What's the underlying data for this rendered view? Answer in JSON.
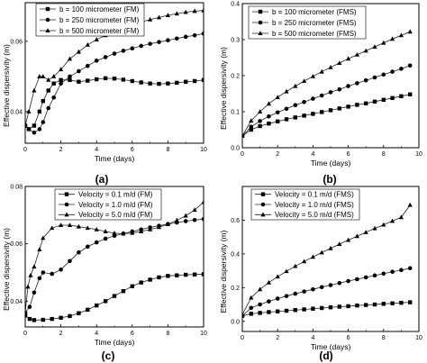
{
  "chart_data": [
    {
      "type": "line",
      "panel_label": "(a)",
      "xlabel": "Time (days)",
      "ylabel": "Effective dispersivity (m)",
      "xlim": [
        0,
        10
      ],
      "ylim": [
        0.031,
        0.071
      ],
      "xticks": [
        0,
        2,
        4,
        6,
        8,
        10
      ],
      "yticks": [
        0.04,
        0.06
      ],
      "legend_position": "top-left",
      "series": [
        {
          "name": "b = 100 micrometer (FM)",
          "marker": "square",
          "x": [
            0,
            0.2,
            0.5,
            0.8,
            1,
            1.3,
            1.6,
            2,
            2.5,
            3,
            3.5,
            4,
            4.5,
            5,
            5.5,
            6,
            6.5,
            7,
            7.5,
            8,
            8.5,
            9,
            9.5,
            10
          ],
          "y": [
            0.036,
            0.035,
            0.036,
            0.04,
            0.043,
            0.046,
            0.048,
            0.049,
            0.049,
            0.0485,
            0.0488,
            0.0492,
            0.0495,
            0.0494,
            0.0491,
            0.0487,
            0.0483,
            0.048,
            0.0479,
            0.048,
            0.0482,
            0.0485,
            0.0487,
            0.049
          ]
        },
        {
          "name": "b = 250 micrometer (FM)",
          "marker": "circle",
          "x": [
            0,
            0.2,
            0.5,
            0.8,
            1,
            1.3,
            1.6,
            2,
            2.5,
            3,
            3.5,
            4,
            4.5,
            5,
            5.5,
            6,
            6.5,
            7,
            7.5,
            8,
            8.5,
            9,
            9.5,
            10
          ],
          "y": [
            0.036,
            0.035,
            0.034,
            0.035,
            0.037,
            0.041,
            0.044,
            0.048,
            0.05,
            0.0515,
            0.053,
            0.0545,
            0.0555,
            0.0565,
            0.0573,
            0.058,
            0.0587,
            0.0593,
            0.0598,
            0.0603,
            0.0608,
            0.0613,
            0.0617,
            0.0622
          ]
        },
        {
          "name": "b = 500 micrometer (FM)",
          "marker": "triangle",
          "x": [
            0,
            0.2,
            0.5,
            0.8,
            1,
            1.3,
            1.6,
            2,
            2.5,
            3,
            3.5,
            4,
            4.5,
            5,
            5.5,
            6,
            6.5,
            7,
            7.5,
            8,
            8.5,
            9,
            9.5,
            10
          ],
          "y": [
            0.036,
            0.04,
            0.046,
            0.05,
            0.05,
            0.049,
            0.05,
            0.052,
            0.055,
            0.057,
            0.059,
            0.0605,
            0.0617,
            0.0628,
            0.0638,
            0.0647,
            0.0655,
            0.0662,
            0.0668,
            0.0674,
            0.0679,
            0.0683,
            0.0686,
            0.0688
          ]
        }
      ]
    },
    {
      "type": "line",
      "panel_label": "(b)",
      "xlabel": "Time (days)",
      "ylabel": "Effective dispersivity (m)",
      "xlim": [
        0,
        10
      ],
      "ylim": [
        0,
        0.4
      ],
      "xticks": [
        0,
        2,
        4,
        6,
        8,
        10
      ],
      "yticks": [
        0.0,
        0.1,
        0.2,
        0.3,
        0.4
      ],
      "ytick_labels": [
        "0.0",
        "0.1",
        "0.2",
        "0.3",
        "0.4"
      ],
      "legend_position": "top-left",
      "series": [
        {
          "name": "b = 100 micrometer (FMS)",
          "marker": "square",
          "x": [
            0,
            0.5,
            1,
            1.5,
            2,
            2.5,
            3,
            3.5,
            4,
            4.5,
            5,
            5.5,
            6,
            6.5,
            7,
            7.5,
            8,
            8.5,
            9,
            9.5
          ],
          "y": [
            0.033,
            0.05,
            0.06,
            0.067,
            0.073,
            0.079,
            0.084,
            0.089,
            0.094,
            0.099,
            0.104,
            0.109,
            0.114,
            0.119,
            0.123,
            0.128,
            0.133,
            0.138,
            0.143,
            0.148
          ]
        },
        {
          "name": "b = 250 micrometer (FMS)",
          "marker": "circle",
          "x": [
            0,
            0.5,
            1,
            1.5,
            2,
            2.5,
            3,
            3.5,
            4,
            4.5,
            5,
            5.5,
            6,
            6.5,
            7,
            7.5,
            8,
            8.5,
            9,
            9.5
          ],
          "y": [
            0.033,
            0.058,
            0.074,
            0.087,
            0.098,
            0.108,
            0.118,
            0.127,
            0.136,
            0.145,
            0.154,
            0.162,
            0.171,
            0.179,
            0.187,
            0.195,
            0.203,
            0.211,
            0.219,
            0.228
          ]
        },
        {
          "name": "b = 500 micrometer (FMS)",
          "marker": "triangle",
          "x": [
            0,
            0.5,
            1,
            1.5,
            2,
            2.5,
            3,
            3.5,
            4,
            4.5,
            5,
            5.5,
            6,
            6.5,
            7,
            7.5,
            8,
            8.5,
            9,
            9.5
          ],
          "y": [
            0.033,
            0.075,
            0.1,
            0.122,
            0.14,
            0.156,
            0.171,
            0.185,
            0.198,
            0.211,
            0.223,
            0.235,
            0.247,
            0.258,
            0.269,
            0.28,
            0.291,
            0.302,
            0.312,
            0.322
          ]
        }
      ]
    },
    {
      "type": "line",
      "panel_label": "(c)",
      "xlabel": "Time (days)",
      "ylabel": "Effective dispersivity (m)",
      "xlim": [
        0,
        10
      ],
      "ylim": [
        0.031,
        0.08
      ],
      "xticks": [
        0,
        2,
        4,
        6,
        8,
        10
      ],
      "yticks": [
        0.04,
        0.06,
        0.08
      ],
      "legend_position": "top-center",
      "series": [
        {
          "name": "Velocity = 0.1 m/d (FM)",
          "marker": "square",
          "x": [
            0,
            0.25,
            0.5,
            1,
            1.5,
            2,
            2.5,
            3,
            3.5,
            4,
            4.5,
            5,
            5.5,
            6,
            6.5,
            7,
            7.5,
            8,
            8.5,
            9,
            9.5,
            10
          ],
          "y": [
            0.035,
            0.0338,
            0.0334,
            0.0335,
            0.0338,
            0.0342,
            0.0348,
            0.0358,
            0.037,
            0.0385,
            0.04,
            0.0418,
            0.0435,
            0.0452,
            0.0465,
            0.0475,
            0.0483,
            0.0488,
            0.049,
            0.0492,
            0.0493,
            0.0494
          ]
        },
        {
          "name": "Velocity = 1.0 m/d (FM)",
          "marker": "circle",
          "x": [
            0,
            0.25,
            0.5,
            0.8,
            1,
            1.5,
            2,
            2.5,
            3,
            3.5,
            4,
            4.5,
            5,
            5.5,
            6,
            6.5,
            7,
            7.5,
            8,
            8.5,
            9,
            9.5,
            10
          ],
          "y": [
            0.036,
            0.038,
            0.043,
            0.048,
            0.05,
            0.0495,
            0.051,
            0.054,
            0.057,
            0.059,
            0.0605,
            0.0618,
            0.0628,
            0.0636,
            0.0643,
            0.065,
            0.0657,
            0.0663,
            0.0669,
            0.0674,
            0.0679,
            0.0683,
            0.0686
          ]
        },
        {
          "name": "Velocity = 5.0 m/d (FM)",
          "marker": "triangle",
          "x": [
            0,
            0.15,
            0.3,
            0.5,
            0.8,
            1,
            1.5,
            2,
            2.5,
            3,
            3.5,
            4,
            4.5,
            5,
            5.5,
            6,
            6.5,
            7,
            7.5,
            8,
            8.5,
            9,
            9.5,
            10
          ],
          "y": [
            0.036,
            0.045,
            0.049,
            0.052,
            0.058,
            0.062,
            0.0655,
            0.0665,
            0.0665,
            0.066,
            0.0655,
            0.065,
            0.0643,
            0.0637,
            0.0635,
            0.0638,
            0.0643,
            0.065,
            0.0658,
            0.0668,
            0.0682,
            0.0698,
            0.0718,
            0.0745
          ]
        }
      ]
    },
    {
      "type": "line",
      "panel_label": "(d)",
      "xlabel": "Time (days)",
      "ylabel": "Effective dispersivity (m)",
      "xlim": [
        0,
        10
      ],
      "ylim": [
        -0.06,
        0.8
      ],
      "xticks": [
        0,
        2,
        4,
        6,
        8,
        10
      ],
      "yticks": [
        0.0,
        0.2,
        0.4,
        0.6
      ],
      "ytick_labels": [
        "0.0",
        "0.2",
        "0.4",
        "0.6"
      ],
      "legend_position": "top-left",
      "series": [
        {
          "name": "Velocity = 0.1 m/d (FMS)",
          "marker": "square",
          "x": [
            0,
            0.5,
            1,
            1.5,
            2,
            2.5,
            3,
            3.5,
            4,
            4.5,
            5,
            5.5,
            6,
            6.5,
            7,
            7.5,
            8,
            8.5,
            9,
            9.5
          ],
          "y": [
            0.033,
            0.045,
            0.05,
            0.055,
            0.059,
            0.063,
            0.067,
            0.071,
            0.075,
            0.079,
            0.083,
            0.087,
            0.09,
            0.094,
            0.097,
            0.1,
            0.104,
            0.107,
            0.11,
            0.113
          ]
        },
        {
          "name": "Velocity = 1.0 m/d (FMS)",
          "marker": "circle",
          "x": [
            0,
            0.5,
            1,
            1.5,
            2,
            2.5,
            3,
            3.5,
            4,
            4.5,
            5,
            5.5,
            6,
            6.5,
            7,
            7.5,
            8,
            8.5,
            9,
            9.5
          ],
          "y": [
            0.033,
            0.08,
            0.1,
            0.118,
            0.135,
            0.15,
            0.164,
            0.177,
            0.19,
            0.203,
            0.215,
            0.227,
            0.239,
            0.25,
            0.261,
            0.272,
            0.283,
            0.294,
            0.304,
            0.315
          ]
        },
        {
          "name": "Velocity = 5.0 m/d (FMS)",
          "marker": "triangle",
          "x": [
            0,
            0.5,
            1,
            1.5,
            2,
            2.5,
            3,
            3.5,
            4,
            4.5,
            5,
            5.5,
            6,
            6.5,
            7,
            7.5,
            8,
            8.5,
            9,
            9.5
          ],
          "y": [
            0.04,
            0.14,
            0.19,
            0.23,
            0.265,
            0.297,
            0.327,
            0.355,
            0.382,
            0.408,
            0.433,
            0.458,
            0.482,
            0.505,
            0.528,
            0.551,
            0.573,
            0.595,
            0.617,
            0.69
          ]
        }
      ]
    }
  ]
}
